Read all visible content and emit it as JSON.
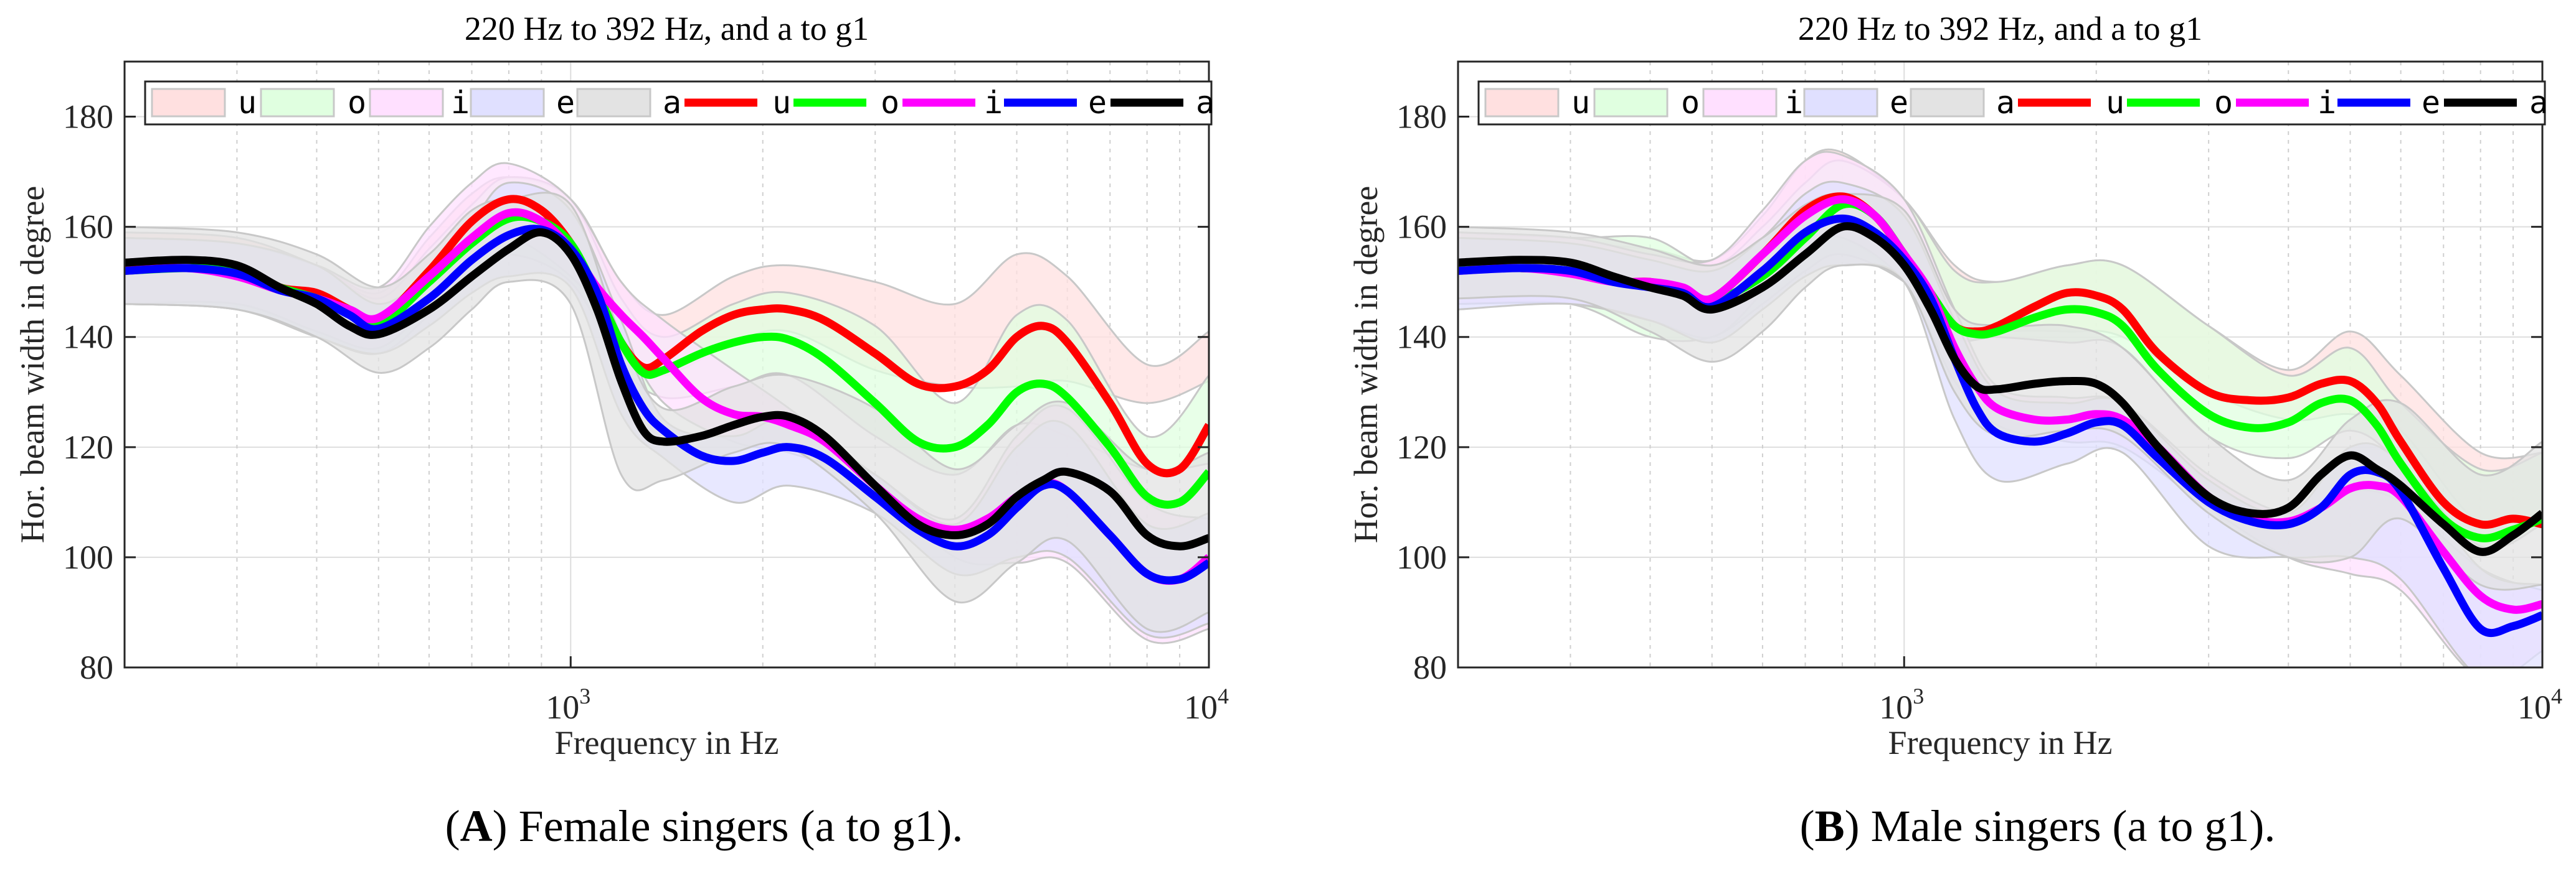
{
  "chart_data": [
    {
      "type": "line",
      "title": "220 Hz to 392 Hz, and a to g1",
      "xlabel": "Frequency in Hz",
      "ylabel": "Hor. beam width in degree",
      "xscale": "log",
      "xlim": [
        200,
        10000
      ],
      "ylim": [
        80,
        190
      ],
      "grid": true,
      "legend_placement": "top",
      "yticks": [
        {
          "value": 80,
          "label": "80"
        },
        {
          "value": 100,
          "label": "100"
        },
        {
          "value": 120,
          "label": "120"
        },
        {
          "value": 140,
          "label": "140"
        },
        {
          "value": 160,
          "label": "160"
        },
        {
          "value": 180,
          "label": "180"
        }
      ],
      "xticks": [
        {
          "value": 1000,
          "base": "10",
          "exp": "3"
        },
        {
          "value": 10000,
          "base": "10",
          "exp": "4"
        }
      ],
      "caption": {
        "open": "(",
        "label": "A",
        "rest": ") Female singers (a to g1)."
      },
      "legend": [
        {
          "kind": "band",
          "name": "u",
          "color": "#ffe0e0"
        },
        {
          "kind": "band",
          "name": "o",
          "color": "#e0ffe0"
        },
        {
          "kind": "band",
          "name": "i",
          "color": "#ffe0ff"
        },
        {
          "kind": "band",
          "name": "e",
          "color": "#e0e0ff"
        },
        {
          "kind": "band",
          "name": "a",
          "color": "#e3e3e3"
        },
        {
          "kind": "line",
          "name": "u",
          "color": "#ff0000"
        },
        {
          "kind": "line",
          "name": "o",
          "color": "#00ff00"
        },
        {
          "kind": "line",
          "name": "i",
          "color": "#ff00ff"
        },
        {
          "kind": "line",
          "name": "e",
          "color": "#0000ff"
        },
        {
          "kind": "line",
          "name": "a",
          "color": "#000000"
        }
      ],
      "band_x": [
        200,
        300,
        400,
        500,
        600,
        700,
        800,
        1000,
        1200,
        1400,
        1800,
        2200,
        3000,
        4000,
        5000,
        6000,
        8000,
        10000
      ],
      "bands": [
        {
          "name": "u",
          "color": "#ffe0e0",
          "lower": [
            147,
            146,
            141,
            138,
            146,
            155,
            160,
            151,
            136,
            133,
            139,
            141,
            134,
            131,
            131,
            132,
            128,
            132
          ],
          "upper": [
            159,
            158,
            153,
            148,
            158,
            166,
            169,
            165,
            150,
            144,
            151,
            153,
            150,
            146,
            155,
            151,
            135,
            141
          ]
        },
        {
          "name": "o",
          "color": "#e0ffe0",
          "lower": [
            146,
            145,
            140,
            137,
            144,
            151,
            155,
            150,
            135,
            129,
            131,
            133,
            122,
            115,
            124,
            122,
            116,
            117
          ],
          "upper": [
            158,
            157,
            153,
            147,
            156,
            164,
            169,
            165,
            147,
            140,
            146,
            148,
            142,
            128,
            144,
            143,
            122,
            133
          ]
        },
        {
          "name": "i",
          "color": "#ffe0ff",
          "lower": [
            146,
            146,
            141,
            138,
            146,
            153,
            158,
            151,
            140,
            128,
            121,
            119,
            113,
            100,
            99,
            99,
            85,
            87
          ],
          "upper": [
            158,
            157,
            153,
            149,
            160,
            168,
            171.5,
            165,
            150,
            143,
            134,
            127,
            115,
            107,
            122,
            127,
            110,
            107
          ]
        },
        {
          "name": "e",
          "color": "#e0e0ff",
          "lower": [
            146,
            145,
            140,
            137,
            142,
            148,
            151,
            149,
            126,
            118,
            110,
            113,
            108,
            97,
            100,
            100,
            86,
            88
          ],
          "upper": [
            158,
            157,
            153,
            146,
            152,
            161,
            168,
            163,
            143,
            125,
            122,
            125,
            115,
            106,
            120,
            124,
            106,
            108
          ]
        },
        {
          "name": "a",
          "color": "#e3e3e3",
          "lower": [
            146,
            145,
            140,
            133.5,
            138,
            145,
            150,
            146,
            115,
            114,
            119,
            120,
            108,
            92,
            99,
            103,
            87,
            90
          ],
          "upper": [
            160,
            159,
            155,
            149,
            155,
            163,
            165,
            164,
            140,
            127,
            131,
            133,
            127,
            116,
            124,
            128,
            116,
            119
          ]
        }
      ],
      "x": [
        200,
        250,
        300,
        350,
        400,
        450,
        500,
        600,
        700,
        800,
        900,
        1000,
        1100,
        1200,
        1300,
        1400,
        1600,
        1800,
        2000,
        2200,
        2500,
        3000,
        3500,
        4000,
        4500,
        5000,
        5500,
        6000,
        7000,
        8000,
        9000,
        10000
      ],
      "series": [
        {
          "name": "u",
          "color": "#ff0000",
          "values": [
            152.5,
            152.5,
            152.5,
            149,
            148,
            145,
            143,
            152,
            161,
            165,
            163,
            157,
            148,
            139,
            134.5,
            136,
            141,
            144,
            145,
            145,
            143,
            137,
            131.5,
            131,
            134,
            140,
            142,
            139,
            128,
            117,
            116,
            124
          ]
        },
        {
          "name": "o",
          "color": "#00ff00",
          "values": [
            152,
            152.5,
            152,
            149,
            147,
            144.5,
            142,
            150,
            157,
            161.5,
            161,
            157,
            148,
            139,
            133.5,
            134,
            137,
            139,
            140,
            139.5,
            136,
            128,
            121,
            120,
            124,
            130,
            131.5,
            129,
            120,
            111,
            110,
            115.5
          ]
        },
        {
          "name": "i",
          "color": "#ff00ff",
          "values": [
            152,
            152.5,
            151,
            148.5,
            147,
            145,
            143.5,
            151,
            158,
            162.5,
            161,
            156,
            149,
            144,
            140,
            136,
            129,
            126,
            125.5,
            124,
            121,
            113,
            107,
            105,
            107,
            111,
            113.5,
            112,
            104,
            97,
            96,
            100
          ]
        },
        {
          "name": "e",
          "color": "#0000ff",
          "values": [
            152,
            152.5,
            151.5,
            148.5,
            147,
            144,
            141.5,
            147,
            154,
            158.5,
            159.5,
            156,
            148,
            135,
            127,
            123,
            118.5,
            117.5,
            119,
            120,
            118,
            111,
            105,
            102,
            104,
            109,
            113,
            112,
            104,
            97,
            96,
            99
          ]
        },
        {
          "name": "a",
          "color": "#000000",
          "values": [
            153.5,
            154,
            153,
            149,
            146,
            142,
            140.5,
            145,
            151,
            156,
            159,
            155,
            145,
            132,
            123,
            121,
            122,
            124,
            125.5,
            125.5,
            122,
            113,
            106,
            104,
            106,
            111,
            114,
            115.5,
            112,
            104,
            102,
            103.5
          ]
        }
      ]
    },
    {
      "type": "line",
      "title": "220 Hz to 392 Hz, and a to g1",
      "xlabel": "Frequency in Hz",
      "ylabel": "Hor. beam width in degree",
      "xscale": "log",
      "xlim": [
        200,
        10000
      ],
      "ylim": [
        80,
        190
      ],
      "grid": true,
      "legend_placement": "top",
      "yticks": [
        {
          "value": 80,
          "label": "80"
        },
        {
          "value": 100,
          "label": "100"
        },
        {
          "value": 120,
          "label": "120"
        },
        {
          "value": 140,
          "label": "140"
        },
        {
          "value": 160,
          "label": "160"
        },
        {
          "value": 180,
          "label": "180"
        }
      ],
      "xticks": [
        {
          "value": 1000,
          "base": "10",
          "exp": "3"
        },
        {
          "value": 10000,
          "base": "10",
          "exp": "4"
        }
      ],
      "caption": {
        "open": "(",
        "label": "B",
        "rest": ") Male singers (a to g1)."
      },
      "legend": [
        {
          "kind": "band",
          "name": "u",
          "color": "#ffe0e0"
        },
        {
          "kind": "band",
          "name": "o",
          "color": "#e0ffe0"
        },
        {
          "kind": "band",
          "name": "i",
          "color": "#ffe0ff"
        },
        {
          "kind": "band",
          "name": "e",
          "color": "#e0e0ff"
        },
        {
          "kind": "band",
          "name": "a",
          "color": "#e3e3e3"
        },
        {
          "kind": "line",
          "name": "u",
          "color": "#ff0000"
        },
        {
          "kind": "line",
          "name": "o",
          "color": "#00ff00"
        },
        {
          "kind": "line",
          "name": "i",
          "color": "#ff00ff"
        },
        {
          "kind": "line",
          "name": "e",
          "color": "#0000ff"
        },
        {
          "kind": "line",
          "name": "a",
          "color": "#000000"
        }
      ],
      "band_x": [
        200,
        300,
        400,
        500,
        600,
        700,
        800,
        1000,
        1200,
        1400,
        1800,
        2200,
        3000,
        4000,
        5000,
        6000,
        8000,
        10000
      ],
      "bands": [
        {
          "name": "u",
          "color": "#ffe0e0",
          "lower": [
            147,
            147,
            143,
            141,
            148,
            155,
            158,
            150,
            140,
            141,
            141,
            140,
            130,
            125,
            126,
            123,
            106,
            108
          ],
          "upper": [
            159,
            157,
            156,
            154,
            162,
            172,
            173.5,
            165,
            153,
            150,
            153,
            153,
            142,
            134,
            141,
            133,
            119,
            119
          ]
        },
        {
          "name": "o",
          "color": "#e0ffe0",
          "lower": [
            146,
            146,
            140,
            140,
            146,
            152,
            155,
            150,
            140,
            140,
            139,
            138,
            122,
            118,
            123,
            117,
            102,
            106
          ],
          "upper": [
            159,
            158,
            158,
            153,
            160,
            168,
            172,
            165,
            152,
            150,
            153,
            153,
            142,
            133,
            138,
            128,
            116,
            119
          ]
        },
        {
          "name": "i",
          "color": "#ffe0ff",
          "lower": [
            146,
            146,
            143,
            140,
            148,
            156,
            158,
            150,
            132,
            124,
            121,
            120,
            109,
            100,
            97,
            94,
            78,
            83
          ],
          "upper": [
            159,
            158,
            155,
            154,
            163,
            172,
            173,
            165,
            145,
            131,
            129,
            128,
            115,
            108,
            112,
            110,
            98,
            94
          ]
        },
        {
          "name": "e",
          "color": "#e0e0ff",
          "lower": [
            145,
            146,
            143,
            139,
            145,
            151,
            153,
            150,
            125,
            114,
            117,
            119,
            102,
            100,
            100,
            96,
            78,
            80
          ],
          "upper": [
            158,
            157,
            154,
            152,
            158,
            166,
            168,
            162,
            143,
            130,
            128,
            128,
            114,
            108,
            120,
            117,
            98,
            95
          ]
        },
        {
          "name": "a",
          "color": "#e3e3e3",
          "lower": [
            147,
            147,
            141,
            135.5,
            141,
            149,
            153,
            150,
            130,
            122,
            123,
            122,
            108,
            100,
            100,
            107,
            95,
            95
          ],
          "upper": [
            160,
            159,
            156,
            153,
            158,
            164,
            166,
            163,
            145,
            142,
            142,
            138,
            122,
            114,
            125,
            128,
            115,
            121
          ]
        }
      ],
      "x": [
        200,
        250,
        300,
        350,
        400,
        450,
        500,
        600,
        700,
        800,
        900,
        1000,
        1100,
        1200,
        1300,
        1400,
        1600,
        1800,
        2000,
        2200,
        2500,
        3000,
        3500,
        4000,
        4500,
        5000,
        5500,
        6000,
        7000,
        8000,
        9000,
        10000
      ],
      "series": [
        {
          "name": "u",
          "color": "#ff0000",
          "values": [
            152.5,
            152.5,
            152,
            150,
            150,
            148.5,
            147,
            155,
            163,
            165.5,
            162,
            155,
            148,
            142,
            141,
            142,
            145.5,
            148,
            147.5,
            145,
            137,
            130,
            128.5,
            129,
            131.5,
            132,
            128,
            121,
            110,
            106,
            107,
            106
          ]
        },
        {
          "name": "o",
          "color": "#00ff00",
          "values": [
            152.5,
            152.5,
            152,
            150,
            149.5,
            148,
            146.5,
            151,
            158,
            164,
            162,
            155,
            148,
            142,
            140.5,
            141,
            143.5,
            145,
            144.5,
            142,
            134,
            126,
            123.5,
            124.5,
            128,
            128.5,
            124,
            117,
            107,
            103.5,
            105,
            107
          ]
        },
        {
          "name": "i",
          "color": "#ff00ff",
          "values": [
            152,
            152.5,
            151.5,
            150,
            150,
            149,
            147,
            155,
            162,
            165,
            162,
            155,
            148,
            138,
            131,
            127,
            125,
            125,
            126,
            125,
            120,
            111,
            107,
            106.5,
            109,
            112.5,
            113,
            111,
            101,
            93,
            90.5,
            91.5
          ]
        },
        {
          "name": "e",
          "color": "#0000ff",
          "values": [
            152,
            152.5,
            152,
            150,
            149,
            148,
            145.5,
            152,
            159,
            161.5,
            159,
            154,
            147,
            136,
            127,
            122.5,
            121,
            122.5,
            124.5,
            124,
            118,
            110,
            106.5,
            106,
            109,
            115,
            115.5,
            112,
            98,
            87,
            87.5,
            89.5
          ]
        },
        {
          "name": "a",
          "color": "#000000",
          "values": [
            153.5,
            154,
            153.5,
            151,
            149,
            147.5,
            145,
            149,
            155,
            160,
            158,
            153,
            145,
            136,
            131,
            130.5,
            131.5,
            132,
            131.5,
            128,
            120,
            111,
            108,
            109,
            115,
            118.5,
            116,
            113,
            106,
            101,
            104,
            108
          ]
        }
      ]
    }
  ]
}
